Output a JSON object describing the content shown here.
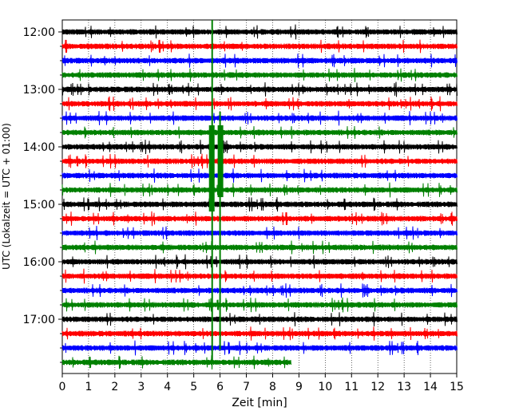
{
  "chart_data": {
    "type": "line",
    "subtype": "helicorder-seismogram",
    "xlabel": "Zeit  [min]",
    "ylabel": "UTC (Lokalzeit = UTC + 01:00)",
    "xlim": [
      0,
      15
    ],
    "x_ticks": [
      "0",
      "1",
      "2",
      "3",
      "4",
      "5",
      "6",
      "7",
      "8",
      "9",
      "10",
      "11",
      "12",
      "13",
      "14",
      "15"
    ],
    "y_ticks": [
      "12:00",
      "13:00",
      "14:00",
      "15:00",
      "16:00",
      "17:00"
    ],
    "row_minutes": 15,
    "start_time": "12:00",
    "row_colors": [
      "#000000",
      "#ff0000",
      "#0000ff",
      "#008000"
    ],
    "rows_count": 24,
    "last_row_end_min": 8.7,
    "grid": "vertical-dotted",
    "events": [
      {
        "label": "",
        "first_row": 0,
        "last_row": 23,
        "x": 5.7,
        "peak_rows": [
          7,
          8,
          9,
          10,
          11,
          12
        ]
      },
      {
        "label": "",
        "first_row": 6,
        "last_row": 22,
        "x": 6.0,
        "peak_rows": [
          7,
          8,
          9,
          10,
          11
        ]
      }
    ]
  }
}
